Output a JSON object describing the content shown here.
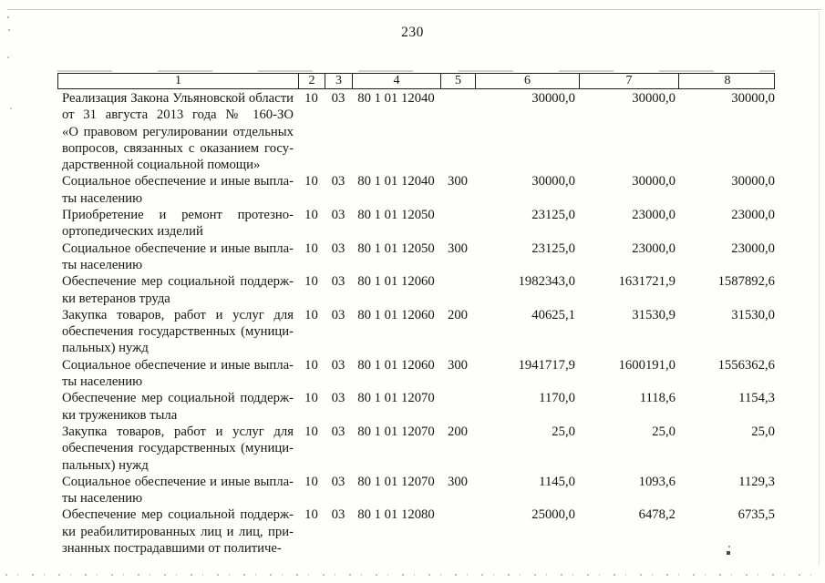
{
  "page": {
    "number": "230"
  },
  "colors": {
    "paper": "#fefefd",
    "ink": "#161616",
    "table_border": "#1f1f1f"
  },
  "table": {
    "header": [
      "1",
      "2",
      "3",
      "4",
      "5",
      "6",
      "7",
      "8"
    ],
    "rows": [
      {
        "name_lines": [
          "Реализация Закона Ульяновской области",
          "от 31 августа 2013 года № 160-ЗО",
          "«О правовом регулировании отдельных",
          "вопросов, связанных с оказанием госу-",
          "дарственной социальной помощи»"
        ],
        "values": [
          "10",
          "03",
          "80 1 01 12040",
          "",
          "30000,0",
          "30000,0",
          "30000,0"
        ]
      },
      {
        "name_lines": [
          "Социальное обеспечение и иные выпла-",
          "ты населению"
        ],
        "values": [
          "10",
          "03",
          "80 1 01 12040",
          "300",
          "30000,0",
          "30000,0",
          "30000,0"
        ]
      },
      {
        "name_lines": [
          "Приобретение и ремонт протезно-",
          "ортопедических изделий"
        ],
        "values": [
          "10",
          "03",
          "80 1 01 12050",
          "",
          "23125,0",
          "23000,0",
          "23000,0"
        ]
      },
      {
        "name_lines": [
          "Социальное обеспечение и иные выпла-",
          "ты населению"
        ],
        "values": [
          "10",
          "03",
          "80 1 01 12050",
          "300",
          "23125,0",
          "23000,0",
          "23000,0"
        ]
      },
      {
        "name_lines": [
          "Обеспечение мер социальной поддерж-",
          "ки ветеранов труда"
        ],
        "values": [
          "10",
          "03",
          "80 1 01 12060",
          "",
          "1982343,0",
          "1631721,9",
          "1587892,6"
        ]
      },
      {
        "name_lines": [
          "Закупка товаров, работ и услуг для",
          "обеспечения государственных (муници-",
          "пальных) нужд"
        ],
        "values": [
          "10",
          "03",
          "80 1 01 12060",
          "200",
          "40625,1",
          "31530,9",
          "31530,0"
        ]
      },
      {
        "name_lines": [
          "Социальное обеспечение и иные выпла-",
          "ты населению"
        ],
        "values": [
          "10",
          "03",
          "80 1 01 12060",
          "300",
          "1941717,9",
          "1600191,0",
          "1556362,6"
        ]
      },
      {
        "name_lines": [
          "Обеспечение мер социальной поддерж-",
          "ки тружеников тыла"
        ],
        "values": [
          "10",
          "03",
          "80 1 01 12070",
          "",
          "1170,0",
          "1118,6",
          "1154,3"
        ]
      },
      {
        "name_lines": [
          "Закупка товаров, работ и услуг для",
          "обеспечения государственных (муници-",
          "пальных) нужд"
        ],
        "values": [
          "10",
          "03",
          "80 1 01 12070",
          "200",
          "25,0",
          "25,0",
          "25,0"
        ]
      },
      {
        "name_lines": [
          "Социальное обеспечение и иные выпла-",
          "ты населению"
        ],
        "values": [
          "10",
          "03",
          "80 1 01 12070",
          "300",
          "1145,0",
          "1093,6",
          "1129,3"
        ]
      },
      {
        "name_lines": [
          "Обеспечение мер социальной поддерж-",
          "ки реабилитированных лиц и лиц, при-",
          "знанных пострадавшими от политиче-"
        ],
        "values": [
          "10",
          "03",
          "80 1 01 12080",
          "",
          "25000,0",
          "6478,2",
          "6735,5"
        ]
      }
    ]
  }
}
